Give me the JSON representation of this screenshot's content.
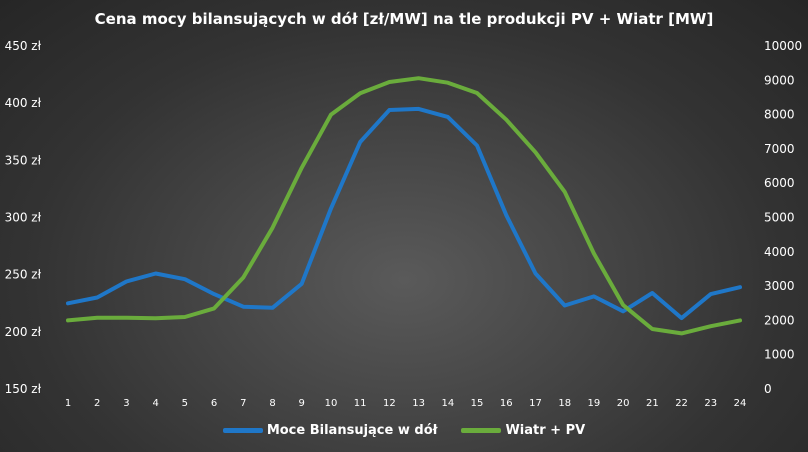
{
  "chart_data": {
    "type": "line",
    "title": "Cena mocy bilansujących w dół [zł/MW] na tle produkcji PV + Wiatr [MW]",
    "x": [
      "1",
      "2",
      "3",
      "4",
      "5",
      "6",
      "7",
      "8",
      "9",
      "10",
      "11",
      "12",
      "13",
      "14",
      "15",
      "16",
      "17",
      "18",
      "19",
      "20",
      "21",
      "22",
      "23",
      "24"
    ],
    "y_left": {
      "ticks": [
        "150 zł",
        "200 zł",
        "250 zł",
        "300 zł",
        "350 zł",
        "400 zł",
        "450 zł"
      ],
      "ylim": [
        150,
        450
      ]
    },
    "y_right": {
      "ticks": [
        "0",
        "1000",
        "2000",
        "3000",
        "4000",
        "5000",
        "6000",
        "7000",
        "8000",
        "9000",
        "10000"
      ],
      "ylim": [
        0,
        10000
      ]
    },
    "series": [
      {
        "name": "Moce Bilansujące w dół",
        "axis": "left",
        "color": "#1f77c8",
        "values": [
          225,
          230,
          244,
          251,
          246,
          233,
          222,
          221,
          242,
          308,
          366,
          394,
          395,
          388,
          363,
          302,
          251,
          223,
          231,
          218,
          234,
          212,
          233,
          239
        ]
      },
      {
        "name": "Wiatr + PV",
        "axis": "right",
        "color": "#6aac3c",
        "values": [
          2000,
          2080,
          2080,
          2060,
          2100,
          2350,
          3250,
          4700,
          6450,
          8000,
          8620,
          8950,
          9060,
          8930,
          8630,
          7850,
          6900,
          5750,
          3950,
          2450,
          1750,
          1620,
          1830,
          2000
        ]
      }
    ],
    "legend_position": "bottom",
    "grid": false
  }
}
